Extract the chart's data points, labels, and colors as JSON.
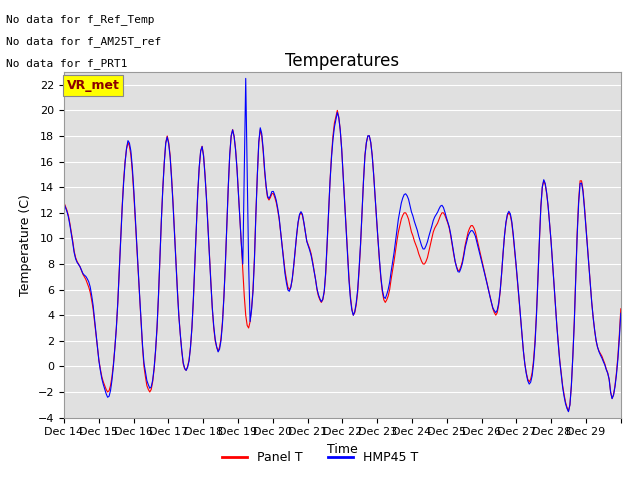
{
  "title": "Temperatures",
  "ylabel": "Temperature (C)",
  "xlabel": "Time",
  "ylim": [
    -4,
    23
  ],
  "yticks": [
    -4,
    -2,
    0,
    2,
    4,
    6,
    8,
    10,
    12,
    14,
    16,
    18,
    20,
    22
  ],
  "x_labels": [
    "Dec 14",
    "Dec 15",
    "Dec 16",
    "Dec 17",
    "Dec 18",
    "Dec 19",
    "Dec 20",
    "Dec 21",
    "Dec 22",
    "Dec 23",
    "Dec 24",
    "Dec 25",
    "Dec 26",
    "Dec 27",
    "Dec 28",
    "Dec 29"
  ],
  "panel_color": "#ff0000",
  "hmp45_color": "#0000ff",
  "annotation_texts": [
    "No data for f_Ref_Temp",
    "No data for f_AM25T_ref",
    "No data for f_PRT1"
  ],
  "legend_label_panel": "Panel T",
  "legend_label_hmp45": "HMP45 T",
  "vr_met_label": "VR_met",
  "title_fontsize": 12,
  "axis_fontsize": 9,
  "tick_fontsize": 8,
  "annotation_fontsize": 8,
  "linewidth": 0.8,
  "panel_data": [
    12.8,
    12.5,
    12.2,
    11.8,
    11.2,
    10.5,
    9.8,
    9.0,
    8.5,
    8.2,
    8.0,
    7.8,
    7.5,
    7.2,
    7.0,
    6.8,
    6.5,
    6.2,
    5.8,
    5.2,
    4.5,
    3.5,
    2.5,
    1.5,
    0.5,
    -0.2,
    -0.8,
    -1.2,
    -1.5,
    -1.8,
    -2.0,
    -1.9,
    -1.5,
    -0.8,
    0.2,
    1.5,
    3.0,
    5.0,
    7.5,
    10.0,
    12.5,
    14.5,
    16.0,
    17.0,
    17.5,
    17.2,
    16.5,
    15.2,
    13.5,
    11.5,
    9.5,
    7.5,
    5.5,
    3.5,
    1.5,
    0.0,
    -0.8,
    -1.5,
    -1.8,
    -2.0,
    -1.8,
    -1.2,
    -0.2,
    1.2,
    3.0,
    5.5,
    8.5,
    11.5,
    14.0,
    16.0,
    17.5,
    18.0,
    17.5,
    16.5,
    14.8,
    12.8,
    10.5,
    8.2,
    6.0,
    4.0,
    2.5,
    1.2,
    0.2,
    -0.2,
    -0.3,
    0.0,
    0.5,
    1.5,
    3.0,
    5.2,
    8.0,
    11.0,
    13.5,
    15.5,
    16.8,
    17.2,
    16.5,
    15.0,
    13.2,
    11.0,
    8.8,
    6.5,
    4.5,
    3.0,
    2.0,
    1.5,
    1.2,
    1.5,
    2.2,
    3.5,
    5.5,
    8.0,
    11.0,
    14.0,
    16.5,
    18.0,
    18.5,
    18.0,
    17.0,
    15.5,
    13.5,
    11.5,
    9.5,
    7.5,
    5.5,
    4.0,
    3.2,
    3.0,
    3.5,
    4.5,
    6.0,
    8.5,
    12.0,
    15.0,
    17.5,
    18.5,
    18.0,
    16.8,
    15.2,
    14.0,
    13.2,
    13.0,
    13.2,
    13.5,
    13.5,
    13.2,
    12.8,
    12.2,
    11.5,
    10.5,
    9.5,
    8.5,
    7.5,
    6.8,
    6.2,
    6.0,
    6.2,
    6.8,
    7.8,
    9.0,
    10.2,
    11.2,
    11.8,
    12.0,
    11.8,
    11.2,
    10.5,
    9.8,
    9.5,
    9.2,
    8.8,
    8.2,
    7.5,
    6.8,
    6.0,
    5.5,
    5.2,
    5.0,
    5.2,
    5.8,
    7.2,
    9.5,
    12.0,
    14.5,
    16.5,
    18.0,
    19.0,
    19.5,
    20.0,
    19.5,
    18.5,
    17.0,
    15.0,
    13.0,
    11.0,
    9.0,
    7.0,
    5.5,
    4.5,
    4.0,
    4.2,
    4.8,
    5.8,
    7.5,
    9.5,
    12.0,
    14.5,
    16.5,
    17.5,
    18.0,
    18.0,
    17.5,
    16.5,
    15.0,
    13.2,
    11.5,
    9.8,
    8.2,
    6.8,
    5.8,
    5.2,
    5.0,
    5.2,
    5.5,
    6.0,
    6.8,
    7.5,
    8.2,
    9.0,
    9.8,
    10.5,
    11.0,
    11.5,
    11.8,
    12.0,
    12.0,
    11.8,
    11.5,
    11.0,
    10.5,
    10.2,
    9.8,
    9.5,
    9.2,
    8.8,
    8.5,
    8.2,
    8.0,
    8.0,
    8.2,
    8.5,
    9.0,
    9.5,
    10.0,
    10.5,
    10.8,
    11.0,
    11.2,
    11.5,
    11.8,
    12.0,
    12.0,
    11.8,
    11.5,
    11.2,
    10.8,
    10.2,
    9.5,
    8.8,
    8.2,
    7.8,
    7.5,
    7.5,
    7.8,
    8.2,
    8.8,
    9.5,
    10.0,
    10.5,
    10.8,
    11.0,
    11.0,
    10.8,
    10.5,
    10.0,
    9.5,
    9.0,
    8.5,
    8.0,
    7.5,
    7.0,
    6.5,
    6.0,
    5.5,
    5.0,
    4.5,
    4.2,
    4.0,
    4.2,
    4.8,
    5.8,
    7.2,
    8.8,
    10.2,
    11.2,
    11.8,
    12.0,
    11.8,
    11.2,
    10.2,
    9.0,
    7.8,
    6.5,
    5.2,
    3.8,
    2.5,
    1.2,
    0.2,
    -0.5,
    -1.0,
    -1.2,
    -1.0,
    -0.5,
    0.5,
    2.0,
    4.2,
    7.0,
    10.0,
    12.5,
    14.0,
    14.5,
    14.2,
    13.5,
    12.5,
    11.2,
    9.8,
    8.2,
    6.5,
    4.8,
    3.2,
    1.8,
    0.5,
    -0.5,
    -1.5,
    -2.2,
    -2.8,
    -3.2,
    -3.5,
    -3.0,
    -1.5,
    0.8,
    3.5,
    7.0,
    10.5,
    13.0,
    14.5,
    14.5,
    13.8,
    12.5,
    11.0,
    9.5,
    8.0,
    6.5,
    5.0,
    3.8,
    2.8,
    2.0,
    1.5,
    1.2,
    1.0,
    0.8,
    0.5,
    0.2,
    -0.2,
    -0.5,
    -1.0,
    -2.0,
    -2.5,
    -2.2,
    -1.5,
    -0.5,
    0.8,
    2.5,
    4.5
  ]
}
